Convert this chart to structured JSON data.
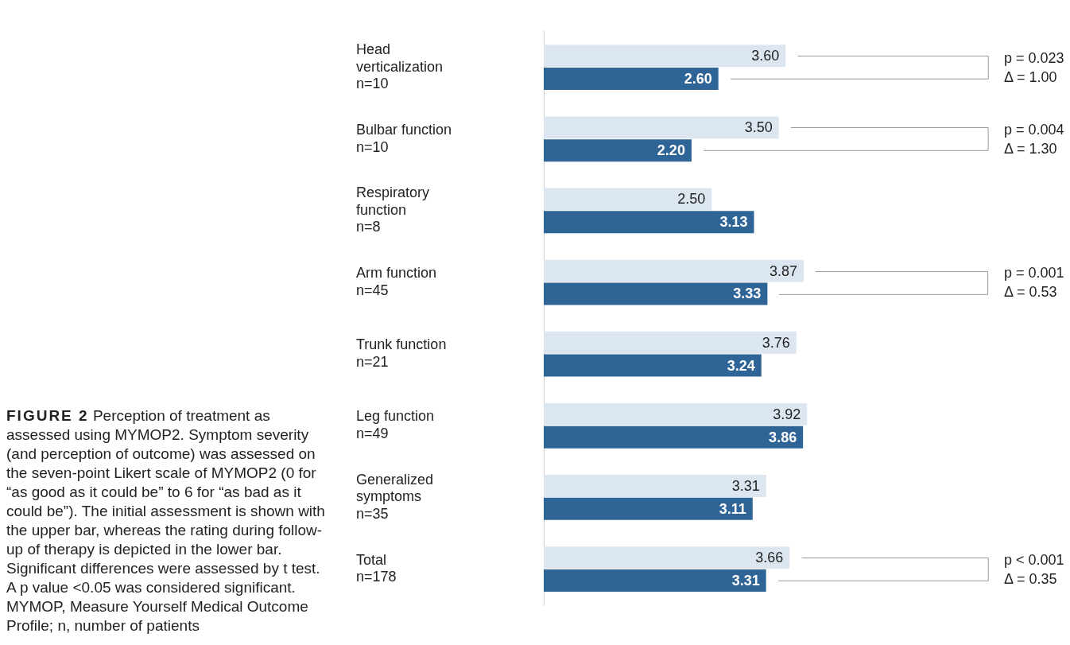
{
  "chart_data": {
    "type": "bar",
    "orientation": "horizontal",
    "title": "FIGURE 2",
    "subtitle": "Perception of treatment as assessed using MYMOP2. Symptom severity (and perception of outcome) was assessed on the seven-point Likert scale of MYMOP2 (0 for “as good as it could be” to 6 for “as bad as it could be”). The initial assessment is shown with the upper bar, whereas the rating during follow-up of therapy is depicted in the lower bar. Significant differences were assessed by t test. A p value <0.05 was considered significant. MYMOP, Measure Yourself Medical Outcome Profile; n, number of patients",
    "categories": [
      "Head\nverticalization\nn=10",
      "Bulbar function\nn=10",
      "Respiratory\nfunction\nn=8",
      "Arm function\nn=45",
      "Trunk function\nn=21",
      "Leg function\nn=49",
      "Generalized\nsymptoms\nn=35",
      "Total\nn=178"
    ],
    "series": [
      {
        "color": "#dce6f0",
        "values": [
          3.6,
          3.5,
          2.5,
          3.87,
          3.76,
          3.92,
          3.31,
          3.66
        ],
        "value_labels": [
          "3.60",
          "3.50",
          "2.50",
          "3.87",
          "3.76",
          "3.92",
          "3.31",
          "3.66"
        ]
      },
      {
        "color": "#2e6496",
        "values": [
          2.6,
          2.2,
          3.13,
          3.33,
          3.24,
          3.86,
          3.11,
          3.31
        ],
        "value_labels": [
          "2.60",
          "2.20",
          "3.13",
          "3.33",
          "3.24",
          "3.86",
          "3.11",
          "3.31"
        ]
      }
    ],
    "tick_labels": "y",
    "annotations": [
      "p = 0.023\nΔ = 1.00",
      "p = 0.004\nΔ = 1.30",
      "p = 0.001\nΔ = 0.53",
      "p < 0.001\nΔ = 0.35"
    ]
  }
}
